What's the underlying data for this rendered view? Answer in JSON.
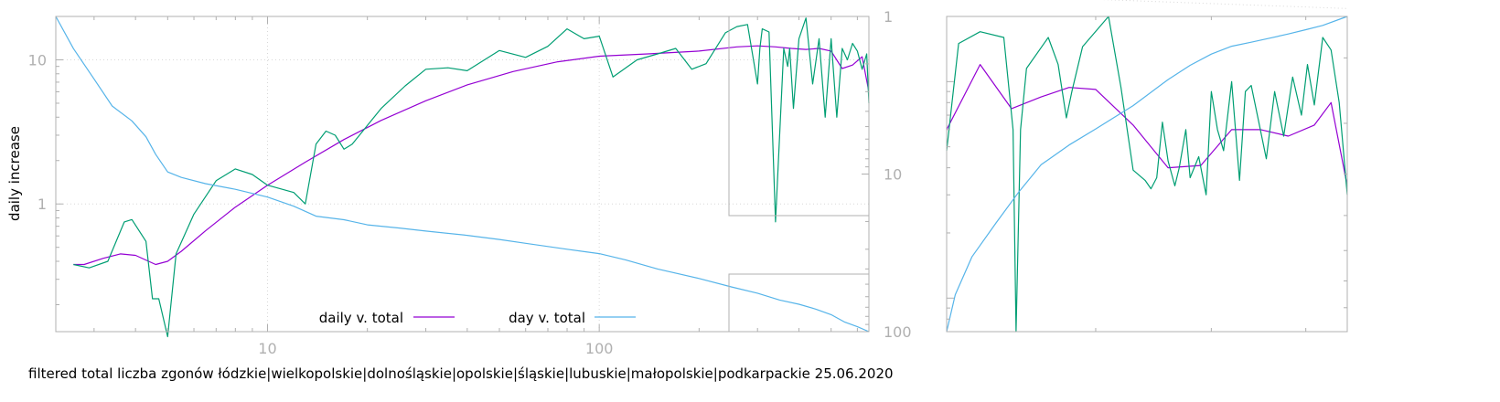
{
  "caption": "filtered total liczba zgonów łódzkie|wielkopolskie|dolnośląskie|opolskie|śląskie|lubuskie|małopolskie|podkarpackie 25.06.2020",
  "colors": {
    "daily": "#9400d3",
    "smooth": "#009e73",
    "day": "#56b4e9",
    "axis": "#b0b0b0"
  },
  "chart_data": {
    "type": "line",
    "ylabel": "daily increase",
    "x_scale": "log",
    "y_scale": "log",
    "y2_scale": "log-reversed",
    "xlim": [
      2.3,
      650
    ],
    "ylim": [
      0.13,
      20
    ],
    "y2lim": [
      1,
      100
    ],
    "x_ticks": [
      "10",
      "100"
    ],
    "y_ticks": [
      "1",
      "10"
    ],
    "y2_ticks": [
      "1",
      "10",
      "100"
    ],
    "grid": true,
    "legend_position": "bottom-center",
    "legend": [
      "daily v. total",
      "day v. total"
    ],
    "series": [
      {
        "name": "daily v. total",
        "color": "#9400d3",
        "x": [
          2.6,
          2.8,
          3.2,
          3.6,
          4.0,
          4.6,
          5.0,
          5.5,
          6.5,
          8,
          10,
          13,
          17,
          22,
          30,
          40,
          55,
          75,
          100,
          140,
          200,
          260,
          300,
          340,
          380,
          420,
          460,
          500,
          540,
          580,
          620,
          650
        ],
        "y": [
          0.38,
          0.38,
          0.42,
          0.45,
          0.44,
          0.38,
          0.4,
          0.47,
          0.65,
          0.95,
          1.35,
          1.95,
          2.8,
          3.8,
          5.2,
          6.7,
          8.3,
          9.7,
          10.6,
          11.0,
          11.5,
          12.3,
          12.5,
          12.3,
          12.0,
          11.8,
          12.0,
          11.5,
          8.7,
          9.2,
          10.5,
          6.0
        ]
      },
      {
        "name": "",
        "color": "#009e73",
        "x": [
          2.6,
          2.9,
          3.3,
          3.7,
          3.9,
          4.3,
          4.5,
          4.7,
          5.0,
          5.3,
          6.0,
          7.0,
          8.0,
          9.0,
          10,
          12,
          13,
          14,
          15,
          16,
          17,
          18,
          22,
          26,
          30,
          35,
          40,
          50,
          60,
          70,
          80,
          90,
          100,
          110,
          130,
          150,
          170,
          190,
          210,
          240,
          260,
          280,
          300,
          305,
          310,
          325,
          340,
          360,
          370,
          375,
          385,
          400,
          420,
          440,
          460,
          480,
          500,
          520,
          540,
          560,
          580,
          600,
          620,
          640,
          650
        ],
        "y": [
          0.38,
          0.36,
          0.4,
          0.75,
          0.78,
          0.55,
          0.22,
          0.22,
          0.12,
          0.45,
          0.85,
          1.45,
          1.75,
          1.6,
          1.35,
          1.2,
          1.0,
          2.6,
          3.2,
          3.0,
          2.4,
          2.6,
          4.6,
          6.6,
          8.6,
          8.8,
          8.4,
          11.6,
          10.4,
          12.4,
          16.4,
          14.0,
          14.6,
          7.6,
          10.0,
          11.0,
          12.0,
          8.6,
          9.4,
          15.4,
          17.0,
          17.6,
          6.8,
          12.0,
          16.4,
          15.6,
          0.75,
          12.0,
          9.0,
          12.0,
          4.6,
          14.0,
          19.5,
          6.8,
          14.0,
          4.0,
          14.0,
          4.0,
          12.0,
          10.0,
          13.0,
          11.5,
          8.6,
          11.0,
          5.0
        ]
      },
      {
        "name": "day v. total",
        "color": "#56b4e9",
        "axis": "y2",
        "x": [
          2.3,
          2.6,
          3.0,
          3.4,
          3.9,
          4.3,
          4.6,
          5.0,
          5.5,
          6.5,
          8,
          10,
          12,
          14,
          17,
          20,
          25,
          30,
          40,
          50,
          60,
          80,
          100,
          120,
          150,
          200,
          250,
          300,
          350,
          400,
          450,
          500,
          550,
          600,
          650
        ],
        "y": [
          1.0,
          1.6,
          2.5,
          3.7,
          4.6,
          5.8,
          7.5,
          9.7,
          10.5,
          11.5,
          12.5,
          14.0,
          16.0,
          18.5,
          19.5,
          21.0,
          22.0,
          23.0,
          24.5,
          26.0,
          27.5,
          30.0,
          32.0,
          35.0,
          40.0,
          46.0,
          52.0,
          57.0,
          63.0,
          67.0,
          72.0,
          78.0,
          87.0,
          93.0,
          100.0
        ]
      }
    ]
  },
  "inset": {
    "type": "line",
    "x_scale": "log",
    "y_scale": "log",
    "xlim": [
      300,
      650
    ],
    "ylim": [
      0.7,
      20
    ],
    "y2lim": [
      25,
      100
    ],
    "series": [
      {
        "name": "daily v. total",
        "color": "#9400d3",
        "x": [
          300,
          320,
          340,
          360,
          380,
          400,
          430,
          460,
          490,
          520,
          550,
          580,
          610,
          630,
          650
        ],
        "y": [
          6.0,
          12.0,
          7.5,
          8.5,
          9.4,
          9.2,
          6.3,
          4.0,
          4.1,
          6.0,
          6.0,
          5.6,
          6.3,
          8.0,
          3.3
        ],
        "y_data_note": ""
      },
      {
        "name": "",
        "color": "#009e73",
        "x": [
          300,
          307,
          320,
          335,
          341,
          343,
          346,
          350,
          365,
          372,
          378,
          382,
          390,
          410,
          420,
          430,
          440,
          445,
          450,
          455,
          460,
          466,
          470,
          476,
          480,
          488,
          495,
          500,
          506,
          512,
          520,
          528,
          534,
          540,
          548,
          556,
          565,
          575,
          585,
          595,
          602,
          610,
          620,
          630,
          640,
          650
        ],
        "y": [
          4.8,
          15.0,
          17.0,
          16.0,
          6.0,
          0.7,
          6.0,
          11.5,
          16.0,
          12.0,
          6.8,
          9.0,
          14.5,
          20.0,
          9.4,
          3.9,
          3.5,
          3.2,
          3.6,
          6.5,
          4.3,
          3.3,
          4.0,
          6.0,
          3.6,
          4.5,
          3.0,
          9.0,
          6.0,
          4.8,
          10.0,
          3.5,
          9.0,
          9.6,
          6.5,
          4.4,
          9.0,
          5.6,
          10.5,
          7.0,
          12.0,
          7.8,
          16.0,
          14.0,
          8.0,
          3.0
        ],
        "y_data_note": ""
      },
      {
        "name": "day v. total",
        "color": "#56b4e9",
        "axis": "y2",
        "x": [
          300,
          305,
          315,
          330,
          345,
          360,
          380,
          400,
          430,
          460,
          480,
          500,
          520,
          540,
          560,
          580,
          600,
          620,
          650
        ],
        "y": [
          100,
          85,
          72,
          62,
          54,
          48,
          44,
          41,
          37,
          33,
          31,
          29.5,
          28.5,
          28,
          27.5,
          27,
          26.5,
          26,
          25
        ],
        "y_data_note": ""
      }
    ]
  }
}
